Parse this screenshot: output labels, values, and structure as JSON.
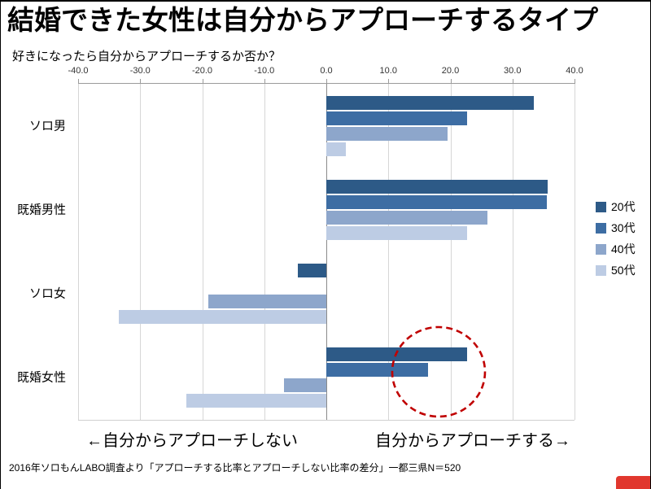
{
  "header": {
    "title": "結婚できた女性は自分からアプローチするタイプ",
    "subtitle": "好きになったら自分からアプローチするか否か？"
  },
  "chart_data": {
    "type": "bar",
    "orientation": "horizontal",
    "categories": [
      "ソロ男",
      "既婚男性",
      "ソロ女",
      "既婚女性"
    ],
    "series": [
      {
        "name": "20代",
        "color": "#2d5a87",
        "values": [
          33.4,
          35.7,
          -4.6,
          22.7
        ]
      },
      {
        "name": "30代",
        "color": "#3d6da3",
        "values": [
          22.7,
          35.5,
          0,
          16.4
        ]
      },
      {
        "name": "40代",
        "color": "#8da6cb",
        "values": [
          19.5,
          26.0,
          -19.0,
          -6.8
        ]
      },
      {
        "name": "50代",
        "color": "#bdcce4",
        "values": [
          3.1,
          22.7,
          -33.4,
          -22.6
        ]
      }
    ],
    "xlim": [
      -40,
      40
    ],
    "x_ticks": [
      -40,
      -30,
      -20,
      -10,
      0,
      10,
      20,
      30,
      40
    ],
    "x_tick_labels": [
      "-40.0",
      "-30.0",
      "-20.0",
      "-10.0",
      "0.0",
      "10.0",
      "20.0",
      "30.0",
      "40.0"
    ],
    "grid": true,
    "legend_position": "right",
    "direction_labels": {
      "left": "←自分からアプローチしない",
      "right": "自分からアプローチする→"
    },
    "highlight": {
      "shape": "dashed-circle",
      "color": "#c00000",
      "target": "既婚女性の正の値（20代・30代）"
    }
  },
  "footer": {
    "source": "2016年ソロもんLABO調査より「アプローチする比率とアプローチしない比率の差分」一都三県N＝520"
  }
}
